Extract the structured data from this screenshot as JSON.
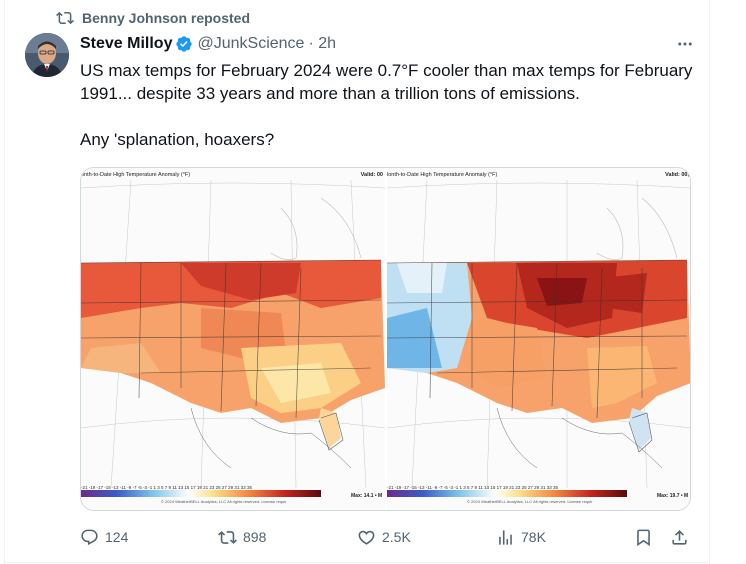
{
  "repost": {
    "label": "Benny Johnson reposted",
    "icon": "repost-icon"
  },
  "author": {
    "name": "Steve Milloy",
    "handle": "@JunkScience",
    "time": "· 2h",
    "verified_icon": "verified-badge-icon",
    "verified_color": "#1d9bf0"
  },
  "tweet": {
    "text": "US max temps for February 2024 were 0.7°F cooler than max temps for February 1991... despite 33 years and more than a trillion tons of emissions.\n\nAny 'splanation, hoaxers?"
  },
  "media": {
    "left": {
      "title": "onth-to-Date High Temperature Anomaly (°F)",
      "valid": "Valid: 00",
      "scale": "-21 -19 -17 -15 -13 -11 -9 -7 -5 -3 -1 1 3 5 7 9 11 13 15 17 19 21 23 25 27 29 31 33 35",
      "max": "Max: 14.1 • M",
      "copyright": "© 2024 WeatherBELL Analytics, LLC All rights reserved. License requir"
    },
    "right": {
      "title": "lonth-to-Date High Temperature Anomaly (°F)",
      "valid": "Valid: 00,",
      "scale": "-21 -19 -17 -15 -13 -11 -9 -7 -5 -3 -1 1 3 5 7 9 11 13 15 17 19 21 23 25 27 29 31 33 35",
      "max": "Max: 19.7 • M",
      "copyright": "© 2024 WeatherBELL Analytics, LLC All rights reserved. License requir"
    }
  },
  "actions": {
    "replies": "124",
    "reposts": "898",
    "likes": "2.5K",
    "views": "78K"
  },
  "colors": {
    "text": "#0f1419",
    "secondary": "#536471",
    "border": "#cfd9de",
    "repost_green": "#00ba7c"
  }
}
